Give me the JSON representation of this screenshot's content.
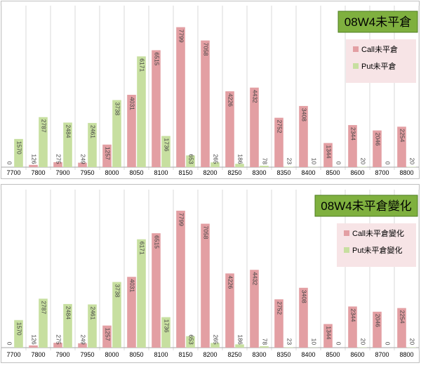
{
  "colors": {
    "call": "#E39FA3",
    "put": "#C7DFA0",
    "title_box_bg": "#7FB03F",
    "legend_bg": "#F7E4E6",
    "grid": "#D9D9D9"
  },
  "chart_data": [
    {
      "type": "bar",
      "title": "08W4未平倉",
      "categories": [
        "7700",
        "7800",
        "7900",
        "7950",
        "8000",
        "8050",
        "8100",
        "8150",
        "8200",
        "8250",
        "8300",
        "8350",
        "8400",
        "8500",
        "8600",
        "8700",
        "8800"
      ],
      "series": [
        {
          "name": "Call未平倉",
          "values": [
            0,
            126,
            275,
            249,
            1257,
            4031,
            6515,
            7799,
            7058,
            4226,
            4432,
            2752,
            3408,
            1344,
            2344,
            2046,
            2254
          ]
        },
        {
          "name": "Put未平倉",
          "values": [
            1570,
            2787,
            2484,
            2461,
            3738,
            6171,
            1736,
            653,
            265,
            186,
            78,
            23,
            10,
            0,
            20,
            0,
            20
          ]
        }
      ],
      "data_labels": {
        "call": [
          "0",
          "126",
          "275",
          "249",
          "1257",
          "4031",
          "6515",
          "7799",
          "7058",
          "4226",
          "4432",
          "2752",
          "3408",
          "1344",
          "2344",
          "2046",
          "2254"
        ],
        "put": [
          "1570",
          "2787",
          "2484",
          "2461",
          "3738",
          "6171",
          "1736",
          "653",
          "265",
          "186",
          "78",
          "23",
          "10",
          "0",
          "20",
          "0",
          "20"
        ]
      },
      "ylim": [
        0,
        9000
      ],
      "legend": "right",
      "grid": "vertical"
    },
    {
      "type": "bar",
      "title": "08W4未平倉變化",
      "categories": [
        "7700",
        "7800",
        "7900",
        "7950",
        "8000",
        "8050",
        "8100",
        "8150",
        "8200",
        "8250",
        "8300",
        "8350",
        "8400",
        "8500",
        "8600",
        "8700",
        "8800"
      ],
      "series": [
        {
          "name": "Call未平倉變化",
          "values": [
            0,
            126,
            275,
            249,
            1257,
            4031,
            6515,
            7799,
            7058,
            4226,
            4432,
            2752,
            3408,
            1344,
            2344,
            2046,
            2254
          ]
        },
        {
          "name": "Put未平倉變化",
          "values": [
            1570,
            2787,
            2484,
            2461,
            3738,
            6171,
            1736,
            653,
            265,
            186,
            78,
            23,
            10,
            0,
            20,
            0,
            20
          ]
        }
      ],
      "data_labels": {
        "call": [
          "0",
          "126",
          "275",
          "249",
          "1257",
          "4031",
          "6515",
          "7799",
          "7058",
          "4226",
          "4432",
          "2752",
          "3408",
          "1344",
          "2344",
          "2046",
          "2254"
        ],
        "put": [
          "1570",
          "2787",
          "2484",
          "2461",
          "3738",
          "6171",
          "1736",
          "653",
          "265",
          "186",
          "78",
          "23",
          "10",
          "0",
          "20",
          "0",
          "20"
        ]
      },
      "ylim": [
        0,
        9000
      ],
      "legend": "right",
      "grid": "vertical"
    }
  ]
}
